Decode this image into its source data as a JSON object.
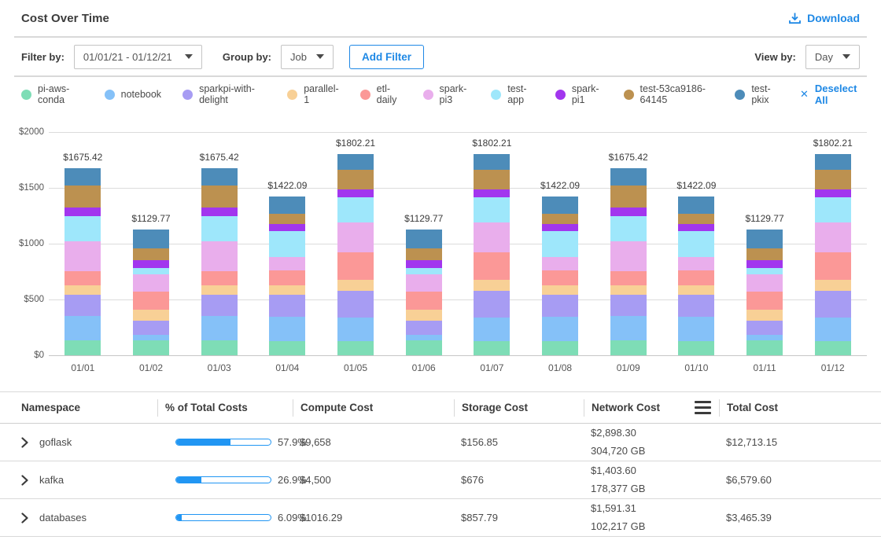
{
  "colors": {
    "accent": "#1e88e5",
    "progress": "#2196f3"
  },
  "header": {
    "title": "Cost Over Time",
    "download_label": "Download"
  },
  "toolbar": {
    "filter_by_label": "Filter by:",
    "date_range_value": "01/01/21 - 01/12/21",
    "group_by_label": "Group by:",
    "group_by_value": "Job",
    "add_filter_label": "Add Filter",
    "view_by_label": "View by:",
    "view_by_value": "Day"
  },
  "legend": {
    "deselect_all_label": "Deselect All",
    "items": [
      {
        "label": "pi-aws-conda",
        "color": "#7eddb6"
      },
      {
        "label": "notebook",
        "color": "#85c1f8"
      },
      {
        "label": "sparkpi-with-delight",
        "color": "#a79cf3"
      },
      {
        "label": "parallel-1",
        "color": "#f8d096"
      },
      {
        "label": "etl-daily",
        "color": "#fb9897"
      },
      {
        "label": "spark-pi3",
        "color": "#e9aeec"
      },
      {
        "label": "test-app",
        "color": "#9ee7fb"
      },
      {
        "label": "spark-pi1",
        "color": "#a236ee"
      },
      {
        "label": "test-53ca9186-64145",
        "color": "#bc9150"
      },
      {
        "label": "test-pkix",
        "color": "#4d8cb9"
      }
    ]
  },
  "chart_data": {
    "type": "bar",
    "stacked": true,
    "x": [
      "01/01",
      "01/02",
      "01/03",
      "01/04",
      "01/05",
      "01/06",
      "01/07",
      "01/08",
      "01/09",
      "01/10",
      "01/11",
      "01/12"
    ],
    "total_labels": [
      "$1675.42",
      "$1129.77",
      "$1675.42",
      "$1422.09",
      "$1802.21",
      "$1129.77",
      "$1802.21",
      "$1422.09",
      "$1675.42",
      "$1422.09",
      "$1129.77",
      "$1802.21"
    ],
    "totals": [
      1675.42,
      1129.77,
      1675.42,
      1422.09,
      1802.21,
      1129.77,
      1802.21,
      1422.09,
      1675.42,
      1422.09,
      1129.77,
      1802.21
    ],
    "ylim": [
      0,
      2000
    ],
    "yticks": [
      "$2000",
      "$1500",
      "$1000",
      "$500",
      "$0"
    ],
    "grid": true,
    "legend_position": "top",
    "series": [
      {
        "name": "pi-aws-conda",
        "color": "#7eddb6",
        "values": [
          135,
          135,
          135,
          130,
          130,
          135,
          130,
          130,
          135,
          130,
          135,
          130
        ]
      },
      {
        "name": "notebook",
        "color": "#85c1f8",
        "values": [
          215,
          50,
          215,
          215,
          210,
          50,
          210,
          215,
          215,
          215,
          50,
          210
        ]
      },
      {
        "name": "sparkpi-with-delight",
        "color": "#a79cf3",
        "values": [
          195,
          125,
          195,
          200,
          240,
          125,
          240,
          200,
          195,
          200,
          125,
          240
        ]
      },
      {
        "name": "parallel-1",
        "color": "#f8d096",
        "values": [
          80,
          100,
          80,
          85,
          95,
          100,
          95,
          85,
          80,
          85,
          100,
          95
        ]
      },
      {
        "name": "etl-daily",
        "color": "#fb9897",
        "values": [
          130,
          160,
          130,
          130,
          250,
          160,
          250,
          130,
          130,
          130,
          160,
          250
        ]
      },
      {
        "name": "spark-pi3",
        "color": "#e9aeec",
        "values": [
          270,
          155,
          270,
          120,
          265,
          155,
          265,
          120,
          270,
          120,
          155,
          265
        ]
      },
      {
        "name": "test-app",
        "color": "#9ee7fb",
        "values": [
          225,
          55,
          225,
          230,
          225,
          55,
          225,
          230,
          225,
          230,
          55,
          225
        ]
      },
      {
        "name": "spark-pi1",
        "color": "#a236ee",
        "values": [
          75,
          70,
          75,
          65,
          70,
          70,
          70,
          65,
          75,
          65,
          70,
          70
        ]
      },
      {
        "name": "test-53ca9186-64145",
        "color": "#bc9150",
        "values": [
          195,
          110,
          195,
          95,
          180,
          110,
          180,
          95,
          195,
          95,
          110,
          180
        ]
      },
      {
        "name": "test-pkix",
        "color": "#4d8cb9",
        "values": [
          155.42,
          169.77,
          155.42,
          152.09,
          137.21,
          169.77,
          137.21,
          152.09,
          155.42,
          152.09,
          169.77,
          137.21
        ]
      }
    ]
  },
  "table": {
    "headers": [
      "Namespace",
      "% of Total Costs",
      "Compute Cost",
      "Storage Cost",
      "Network  Cost",
      "Total Cost"
    ],
    "rows": [
      {
        "namespace": "goflask",
        "pct_label": "57.9%",
        "pct_value": 57.9,
        "compute": "$9,658",
        "storage": "$156.85",
        "network_cost": "$2,898.30",
        "network_gb": "304,720 GB",
        "total": "$12,713.15"
      },
      {
        "namespace": "kafka",
        "pct_label": "26.9%",
        "pct_value": 26.9,
        "compute": "$4,500",
        "storage": "$676",
        "network_cost": "$1,403.60",
        "network_gb": "178,377 GB",
        "total": "$6,579.60"
      },
      {
        "namespace": "databases",
        "pct_label": "6.09%",
        "pct_value": 6.09,
        "compute": "$1016.29",
        "storage": "$857.79",
        "network_cost": "$1,591.31",
        "network_gb": "102,217 GB",
        "total": "$3,465.39"
      }
    ]
  }
}
